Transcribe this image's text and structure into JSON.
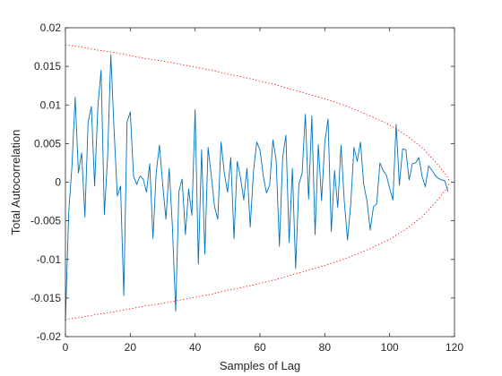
{
  "chart_data": {
    "type": "line",
    "xlabel": "Samples of Lag",
    "ylabel": "Total Autocorrelation",
    "xlim": [
      0,
      120
    ],
    "ylim": [
      -0.02,
      0.02
    ],
    "x_ticks": [
      0,
      20,
      40,
      60,
      80,
      100,
      120
    ],
    "x_tick_labels": [
      "0",
      "20",
      "40",
      "60",
      "80",
      "100",
      "120"
    ],
    "y_ticks": [
      -0.02,
      -0.015,
      -0.01,
      -0.005,
      0,
      0.005,
      0.01,
      0.015,
      0.02
    ],
    "y_tick_labels": [
      "-0.02",
      "-0.015",
      "-0.01",
      "-0.005",
      "0",
      "0.005",
      "0.01",
      "0.015",
      "0.02"
    ],
    "grid": false,
    "box": true,
    "series": [
      {
        "color": "#0072bd",
        "style": "solid",
        "x": [
          0,
          1,
          2,
          3,
          4,
          5,
          6,
          7,
          8,
          9,
          10,
          11,
          12,
          13,
          14,
          15,
          16,
          17,
          18,
          19,
          20,
          21,
          22,
          23,
          24,
          25,
          26,
          27,
          28,
          29,
          30,
          31,
          32,
          33,
          34,
          35,
          36,
          37,
          38,
          39,
          40,
          41,
          42,
          43,
          44,
          45,
          46,
          47,
          48,
          49,
          50,
          51,
          52,
          53,
          54,
          55,
          56,
          57,
          58,
          59,
          60,
          61,
          62,
          63,
          64,
          65,
          66,
          67,
          68,
          69,
          70,
          71,
          72,
          73,
          74,
          75,
          76,
          77,
          78,
          79,
          80,
          81,
          82,
          83,
          84,
          85,
          86,
          87,
          88,
          89,
          90,
          91,
          92,
          93,
          94,
          95,
          96,
          97,
          98,
          99,
          100,
          101,
          102,
          103,
          104,
          105,
          106,
          107,
          108,
          109,
          110,
          111,
          112,
          113,
          114,
          115,
          116,
          117,
          118
        ],
        "y": [
          -0.018,
          -0.004,
          0.002,
          0.011,
          0.0012,
          0.0038,
          -0.0045,
          0.0078,
          0.0098,
          -0.0005,
          0.0098,
          0.0145,
          -0.0042,
          0.0032,
          0.0165,
          0.0068,
          -0.0018,
          -0.0005,
          -0.0147,
          0.0078,
          0.0091,
          0.0008,
          -0.0003,
          0.0008,
          0.0004,
          -0.0013,
          0.0024,
          -0.0073,
          0.0013,
          0.0048,
          -0.0003,
          -0.0048,
          0.0018,
          -0.0058,
          -0.0167,
          -0.0012,
          0.0004,
          -0.0068,
          -0.0009,
          -0.0043,
          0.0094,
          -0.0106,
          0.0042,
          -0.0093,
          0.0045,
          0.0008,
          -0.0032,
          -0.0048,
          0.0052,
          0.0012,
          -0.0013,
          0.0032,
          -0.0073,
          0.0027,
          0.0006,
          -0.0023,
          0.0018,
          -0.0058,
          0.0014,
          0.0052,
          0.0042,
          0.0009,
          -0.0014,
          -0.0004,
          0.0055,
          0.0028,
          -0.0083,
          0.0032,
          0.0061,
          -0.0078,
          0.0018,
          -0.0112,
          -0.0003,
          0.0012,
          0.0088,
          -0.0022,
          0.0086,
          -0.0068,
          0.0049,
          -0.0024,
          0.0052,
          0.0082,
          -0.0064,
          0.0015,
          -0.0033,
          0.0048,
          -0.0024,
          -0.0075,
          -0.0028,
          0.0045,
          0.0027,
          0.0052,
          -0.0003,
          -0.0024,
          -0.0062,
          -0.0032,
          -0.0028,
          0.0025,
          0.0015,
          0.0009,
          -0.0008,
          -0.0023,
          0.0075,
          -0.0004,
          0.0043,
          0.0042,
          0.0003,
          0.0024,
          0.0025,
          0.0032,
          0.0008,
          -0.0006,
          0.0021,
          0.0016,
          0.0009,
          0.0005,
          0.0003,
          0.0002,
          -0.0012
        ]
      },
      {
        "color": "#ff0000",
        "style": "dotted",
        "x": [
          0,
          5,
          10,
          15,
          20,
          25,
          30,
          35,
          40,
          45,
          50,
          55,
          60,
          65,
          70,
          75,
          80,
          85,
          90,
          95,
          100,
          105,
          110,
          115,
          118,
          118.5
        ],
        "y": [
          0.0178,
          0.0175,
          0.0171,
          0.0168,
          0.0164,
          0.016,
          0.0157,
          0.0153,
          0.0149,
          0.0145,
          0.014,
          0.0136,
          0.0131,
          0.0126,
          0.012,
          0.0114,
          0.0108,
          0.0101,
          0.0093,
          0.0084,
          0.0074,
          0.0061,
          0.0045,
          0.0022,
          0.0006,
          0
        ]
      },
      {
        "color": "#ff0000",
        "style": "dotted",
        "x": [
          0,
          5,
          10,
          15,
          20,
          25,
          30,
          35,
          40,
          45,
          50,
          55,
          60,
          65,
          70,
          75,
          80,
          85,
          90,
          95,
          100,
          105,
          110,
          115,
          118,
          118.5
        ],
        "y": [
          -0.0178,
          -0.0175,
          -0.0171,
          -0.0168,
          -0.0164,
          -0.016,
          -0.0157,
          -0.0153,
          -0.0149,
          -0.0145,
          -0.014,
          -0.0136,
          -0.0131,
          -0.0126,
          -0.012,
          -0.0114,
          -0.0108,
          -0.0101,
          -0.0093,
          -0.0084,
          -0.0074,
          -0.0061,
          -0.0045,
          -0.0022,
          -0.0006,
          0
        ]
      }
    ]
  }
}
